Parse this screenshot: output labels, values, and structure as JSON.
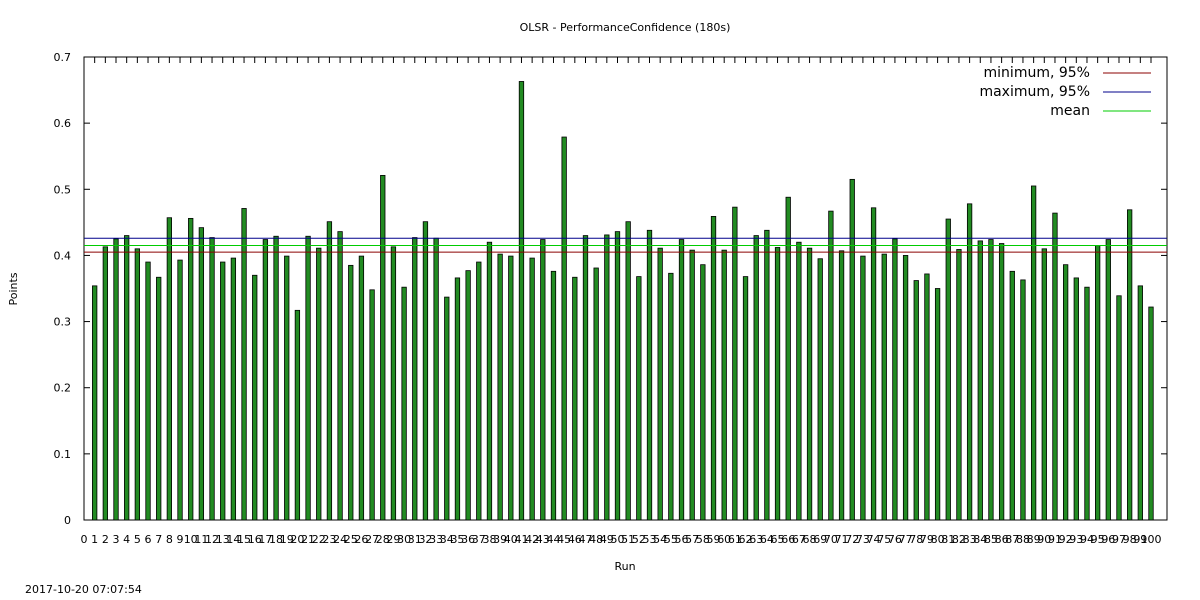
{
  "page": {
    "timestamp": "2017-10-20 07:07:54"
  },
  "chart_data": {
    "type": "bar",
    "title": "OLSR - PerformanceConfidence (180s)",
    "xlabel": "Run",
    "ylabel": "Points",
    "ylim": [
      0,
      0.7
    ],
    "yticks": [
      "0",
      "0.1",
      "0.2",
      "0.3",
      "0.4",
      "0.5",
      "0.6",
      "0.7"
    ],
    "xlim": [
      0,
      100
    ],
    "grid": false,
    "legend_position": "top-right",
    "bar_color": "#228B22",
    "categories": [
      1,
      2,
      3,
      4,
      5,
      6,
      7,
      8,
      9,
      10,
      11,
      12,
      13,
      14,
      15,
      16,
      17,
      18,
      19,
      20,
      21,
      22,
      23,
      24,
      25,
      26,
      27,
      28,
      29,
      30,
      31,
      32,
      33,
      34,
      35,
      36,
      37,
      38,
      39,
      40,
      41,
      42,
      43,
      44,
      45,
      46,
      47,
      48,
      49,
      50,
      51,
      52,
      53,
      54,
      55,
      56,
      57,
      58,
      59,
      60,
      61,
      62,
      63,
      64,
      65,
      66,
      67,
      68,
      69,
      70,
      71,
      72,
      73,
      74,
      75,
      76,
      77,
      78,
      79,
      80,
      81,
      82,
      83,
      84,
      85,
      86,
      87,
      88,
      89,
      90,
      91,
      92,
      93,
      94,
      95,
      96,
      97,
      98,
      99,
      100
    ],
    "values": [
      0.354,
      0.413,
      0.425,
      0.43,
      0.41,
      0.39,
      0.367,
      0.457,
      0.393,
      0.456,
      0.442,
      0.427,
      0.39,
      0.396,
      0.471,
      0.37,
      0.424,
      0.429,
      0.399,
      0.317,
      0.429,
      0.411,
      0.451,
      0.436,
      0.385,
      0.399,
      0.348,
      0.521,
      0.413,
      0.352,
      0.427,
      0.451,
      0.426,
      0.337,
      0.366,
      0.377,
      0.39,
      0.42,
      0.402,
      0.399,
      0.663,
      0.396,
      0.424,
      0.376,
      0.579,
      0.367,
      0.43,
      0.381,
      0.431,
      0.436,
      0.451,
      0.368,
      0.438,
      0.411,
      0.373,
      0.424,
      0.408,
      0.386,
      0.459,
      0.408,
      0.473,
      0.368,
      0.43,
      0.438,
      0.412,
      0.488,
      0.42,
      0.411,
      0.395,
      0.467,
      0.407,
      0.515,
      0.399,
      0.472,
      0.402,
      0.425,
      0.4,
      0.362,
      0.372,
      0.35,
      0.455,
      0.409,
      0.478,
      0.422,
      0.424,
      0.418,
      0.376,
      0.363,
      0.505,
      0.41,
      0.464,
      0.386,
      0.366,
      0.352,
      0.415,
      0.424,
      0.339,
      0.469,
      0.354,
      0.322
    ],
    "hlines": [
      {
        "name": "minimum, 95%",
        "value": 0.405,
        "color": "#8B0000"
      },
      {
        "name": "maximum, 95%",
        "value": 0.426,
        "color": "#00008B"
      },
      {
        "name": "mean",
        "value": 0.415,
        "color": "#00CC00"
      }
    ]
  }
}
